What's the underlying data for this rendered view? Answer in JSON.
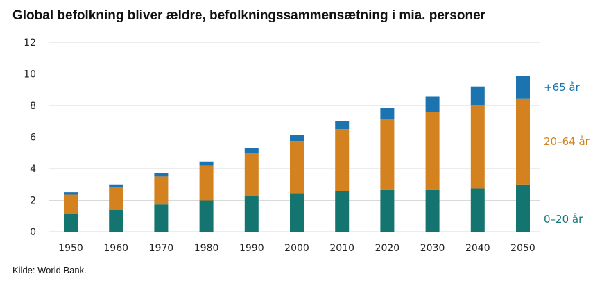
{
  "title": "Global befolkning bliver ældre, befolkningssammensætning i mia. personer",
  "source": "Kilde: World Bank.",
  "colors": {
    "age_0_20": "#147570",
    "age_20_64": "#d4821f",
    "age_65_plus": "#1b74b0",
    "grid": "#d9d9d9",
    "text": "#222222"
  },
  "chart_data": {
    "type": "bar",
    "stacked": true,
    "title": "Global befolkning bliver ældre, befolkningssammensætning i mia. personer",
    "xlabel": "",
    "ylabel": "",
    "ylim": [
      0,
      12
    ],
    "yticks": [
      0,
      2,
      4,
      6,
      8,
      10,
      12
    ],
    "grid": true,
    "legend_position": "right",
    "categories": [
      "1950",
      "1960",
      "1970",
      "1980",
      "1990",
      "2000",
      "2010",
      "2020",
      "2030",
      "2040",
      "2050"
    ],
    "series": [
      {
        "name": "0–20 år",
        "color": "#147570",
        "values": [
          1.1,
          1.4,
          1.75,
          2.0,
          2.25,
          2.45,
          2.55,
          2.65,
          2.65,
          2.75,
          3.0
        ]
      },
      {
        "name": "20–64 år",
        "color": "#d4821f",
        "values": [
          1.25,
          1.45,
          1.75,
          2.2,
          2.75,
          3.3,
          3.95,
          4.5,
          4.95,
          5.25,
          5.45
        ]
      },
      {
        "name": "+65 år",
        "color": "#1b74b0",
        "values": [
          0.15,
          0.15,
          0.2,
          0.25,
          0.3,
          0.4,
          0.5,
          0.7,
          0.95,
          1.2,
          1.4
        ]
      }
    ]
  }
}
